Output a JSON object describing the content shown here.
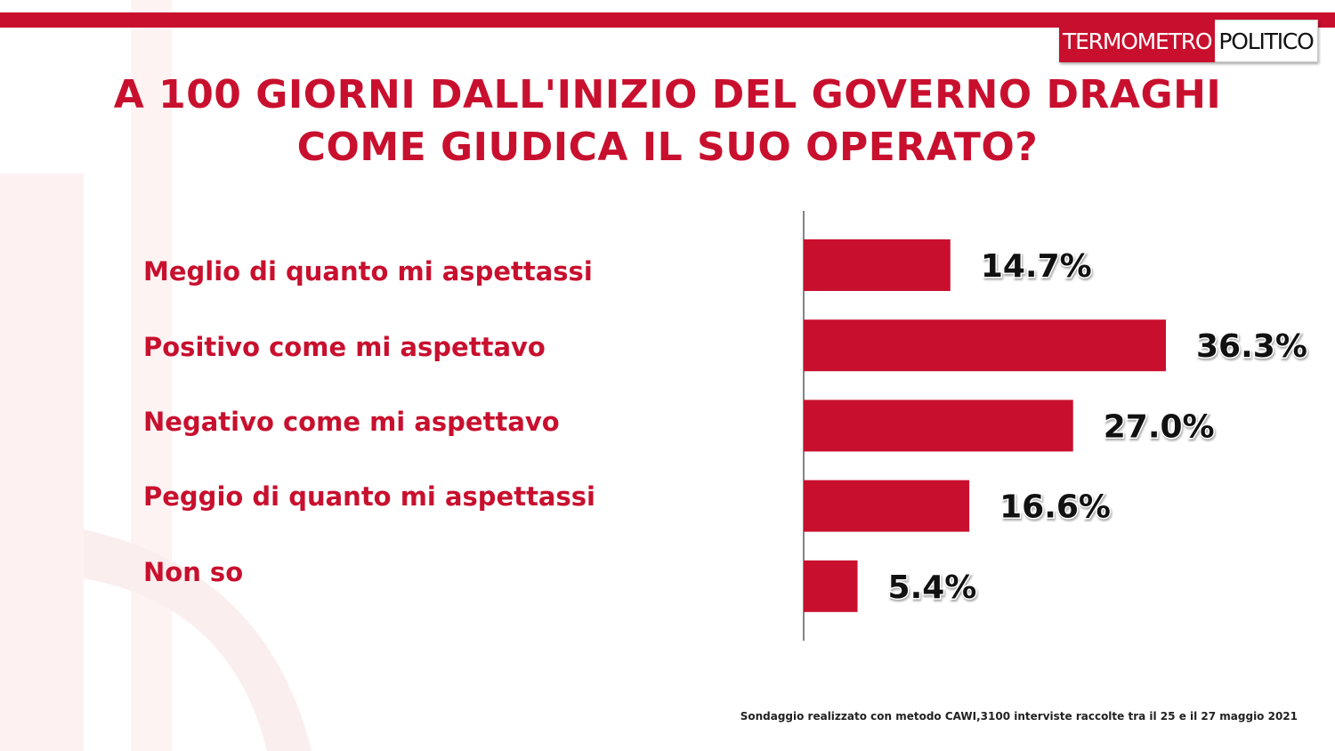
{
  "brand": {
    "logo_left": "TERMOMETRO",
    "logo_right": "POLITICO"
  },
  "chart_data": {
    "type": "bar",
    "orientation": "horizontal",
    "title_lines": [
      "A 100 GIORNI DALL'INIZIO DEL GOVERNO DRAGHI",
      "COME GIUDICA IL SUO OPERATO?"
    ],
    "categories": [
      "Meglio di quanto mi aspettassi",
      "Positivo come mi aspettavo",
      "Negativo come mi aspettavo",
      "Peggio di quanto mi aspettassi",
      "Non so"
    ],
    "values": [
      14.7,
      36.3,
      27.0,
      16.6,
      5.4
    ],
    "value_labels": [
      "14.7%",
      "36.3%",
      "27.0%",
      "16.6%",
      "5.4%"
    ],
    "unit": "%",
    "xlim": [
      0,
      40
    ],
    "grid": false,
    "bar_color": "#c8102e"
  },
  "footnote": "Sondaggio realizzato con metodo CAWI,3100 interviste raccolte tra il 25  e il 27 maggio 2021"
}
